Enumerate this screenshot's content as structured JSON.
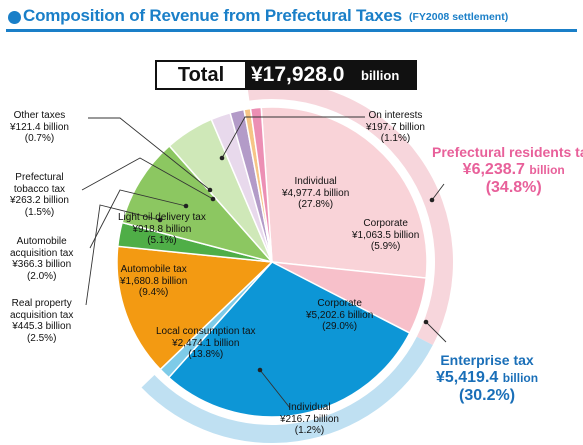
{
  "title": "Composition of Revenue from Prefectural Taxes",
  "subtitle": "(FY2008 settlement)",
  "total": {
    "label": "Total",
    "value": "¥17,928.0",
    "unit": "billion"
  },
  "colors": {
    "title_blue": "#1a7fc8",
    "residents_ring": "#f7d6dc",
    "enterprise_ring": "#bfe0f2",
    "pink_text": "#e8609a",
    "blue_text": "#1a6fb8"
  },
  "chart_data": {
    "type": "pie",
    "unit": "¥ billion",
    "start_angle_deg": -94,
    "slices": [
      {
        "id": "res-individual",
        "name": "Individual",
        "value": 4977.4,
        "value_label": "¥4,977.4 billion",
        "pct_label": "(27.8%)",
        "color": "#f9d3d8"
      },
      {
        "id": "res-corporate",
        "name": "Corporate",
        "value": 1063.5,
        "value_label": "¥1,063.5 billion",
        "pct_label": "(5.9%)",
        "color": "#f7c0ca"
      },
      {
        "id": "ent-corporate",
        "name": "Corporate",
        "value": 5202.6,
        "value_label": "¥5,202.6 billion",
        "pct_label": "(29.0%)",
        "color": "#0d96d6"
      },
      {
        "id": "ent-individual",
        "name": "Individual",
        "value": 216.7,
        "value_label": "¥216.7 billion",
        "pct_label": "(1.2%)",
        "color": "#7ecbe8"
      },
      {
        "id": "local-consumption",
        "name": "Local consumption tax",
        "value": 2474.1,
        "value_label": "¥2,474.1 billion",
        "pct_label": "(13.8%)",
        "color": "#f39a12"
      },
      {
        "id": "real-property",
        "name": "Real property acquisition tax",
        "value": 445.3,
        "value_label": "¥445.3 billion",
        "pct_label": "(2.5%)",
        "color": "#4fae47"
      },
      {
        "id": "automobile",
        "name": "Automobile tax",
        "value": 1680.8,
        "value_label": "¥1,680.8 billion",
        "pct_label": "(9.4%)",
        "color": "#8cc761"
      },
      {
        "id": "light-oil",
        "name": "Light oil delivery tax",
        "value": 918.8,
        "value_label": "¥918.8 billion",
        "pct_label": "(5.1%)",
        "color": "#cfe8b8"
      },
      {
        "id": "auto-acq",
        "name": "Automobile acquisition tax",
        "value": 366.3,
        "value_label": "¥366.3 billion",
        "pct_label": "(2.0%)",
        "color": "#e8d9ec"
      },
      {
        "id": "tobacco",
        "name": "Prefectural tobacco tax",
        "value": 263.2,
        "value_label": "¥263.2 billion",
        "pct_label": "(1.5%)",
        "color": "#b39bc8"
      },
      {
        "id": "other",
        "name": "Other taxes",
        "value": 121.4,
        "value_label": "¥121.4 billion",
        "pct_label": "(0.7%)",
        "color": "#f6c586"
      },
      {
        "id": "interests",
        "name": "On interests",
        "value": 197.7,
        "value_label": "¥197.7 billion",
        "pct_label": "(1.1%)",
        "color": "#ec8fb4"
      }
    ],
    "groups": [
      {
        "id": "residents",
        "name": "Prefectural residents tax",
        "value_label": "¥6,238.7",
        "unit": "billion",
        "pct_label": "(34.8%)",
        "members": [
          "res-individual",
          "res-corporate",
          "interests"
        ]
      },
      {
        "id": "enterprise",
        "name": "Enterprise tax",
        "value_label": "¥5,419.4",
        "unit": "billion",
        "pct_label": "(30.2%)",
        "members": [
          "ent-corporate",
          "ent-individual"
        ]
      }
    ]
  },
  "labels": {
    "other": {
      "lines": [
        "Other taxes",
        "¥121.4 billion",
        "(0.7%)"
      ]
    },
    "tobacco": {
      "lines": [
        "Prefectural",
        "tobacco tax",
        "¥263.2 billion",
        "(1.5%)"
      ]
    },
    "auto_acq": {
      "lines": [
        "Automobile",
        "acquisition tax",
        "¥366.3 billion",
        "(2.0%)"
      ]
    },
    "real_property": {
      "lines": [
        "Real property",
        "acquisition tax",
        "¥445.3 billion",
        "(2.5%)"
      ]
    },
    "interests": {
      "lines": [
        "On interests",
        "¥197.7 billion",
        "(1.1%)"
      ]
    },
    "res_individual": {
      "lines": [
        "Individual",
        "¥4,977.4 billion",
        "(27.8%)"
      ]
    },
    "res_corporate": {
      "lines": [
        "Corporate",
        "¥1,063.5 billion",
        "(5.9%)"
      ]
    },
    "ent_corporate": {
      "lines": [
        "Corporate",
        "¥5,202.6 billion",
        "(29.0%)"
      ]
    },
    "ent_individual": {
      "lines": [
        "Individual",
        "¥216.7 billion",
        "(1.2%)"
      ]
    },
    "local_consumption": {
      "lines": [
        "Local consumption tax",
        "¥2,474.1 billion",
        "(13.8%)"
      ]
    },
    "automobile": {
      "lines": [
        "Automobile tax",
        "¥1,680.8 billion",
        "(9.4%)"
      ]
    },
    "light_oil": {
      "lines": [
        "Light oil delivery tax",
        "¥918.8 billion",
        "(5.1%)"
      ]
    }
  }
}
